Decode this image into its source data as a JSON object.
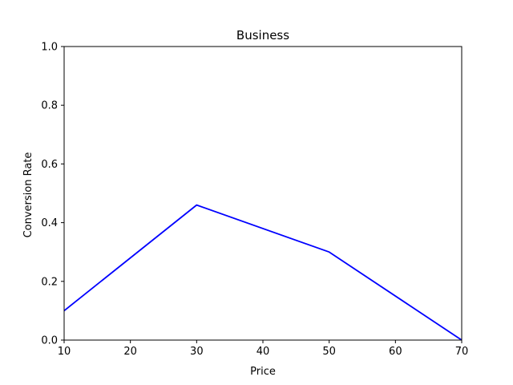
{
  "chart_data": {
    "type": "line",
    "title": "Business",
    "xlabel": "Price",
    "ylabel": "Conversion Rate",
    "xlim": [
      10,
      70
    ],
    "ylim": [
      0.0,
      1.0
    ],
    "x_ticks": [
      "10",
      "20",
      "30",
      "40",
      "50",
      "60",
      "70"
    ],
    "y_ticks": [
      "0.0",
      "0.2",
      "0.4",
      "0.6",
      "0.8",
      "1.0"
    ],
    "grid": false,
    "series": [
      {
        "x": [
          10,
          30,
          50,
          70
        ],
        "values": [
          0.1,
          0.46,
          0.3,
          0.0
        ],
        "color": "#0000ff"
      }
    ]
  }
}
